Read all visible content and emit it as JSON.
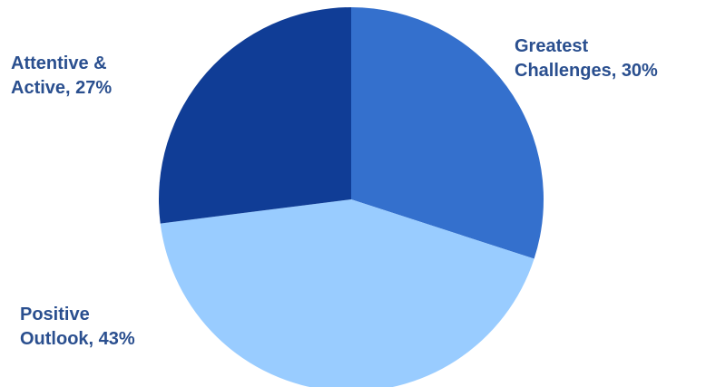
{
  "chart_data": {
    "type": "pie",
    "title": "",
    "slices": [
      {
        "label_line1": "Greatest",
        "label_line2": "Challenges, 30%",
        "name": "Greatest Challenges",
        "value": 30,
        "color": "#3470cd"
      },
      {
        "label_line1": "Positive",
        "label_line2": "Outlook, 43%",
        "name": "Positive Outlook",
        "value": 43,
        "color": "#99ccff"
      },
      {
        "label_line1": "Attentive &",
        "label_line2": "Active, 27%",
        "name": "Attentive & Active",
        "value": 27,
        "color": "#103d96"
      }
    ],
    "start_angle_deg": 0,
    "direction": "clockwise",
    "label_color": "#2a4f8f"
  }
}
